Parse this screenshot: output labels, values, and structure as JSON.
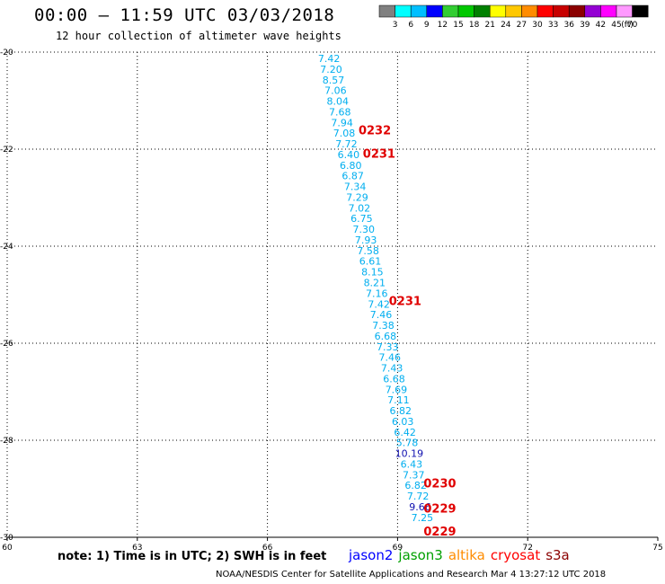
{
  "header": {
    "title": "00:00 – 11:59 UTC 03/03/2018",
    "subtitle": "12 hour collection of altimeter wave heights"
  },
  "color_scale": {
    "values": [
      "3",
      "6",
      "9",
      "12",
      "15",
      "18",
      "21",
      "24",
      "27",
      "30",
      "33",
      "36",
      "39",
      "42",
      "45",
      "70"
    ],
    "unit": "(ft)",
    "colors": [
      "#808080",
      "#00ffff",
      "#00bfff",
      "#0000ff",
      "#32cd32",
      "#00c800",
      "#008000",
      "#ffff00",
      "#ffc800",
      "#ff8c00",
      "#ff0000",
      "#c80000",
      "#8b0000",
      "#9400d3",
      "#ff00ff",
      "#ff99ff",
      "#000000"
    ]
  },
  "chart_data": {
    "type": "scatter",
    "xlim": [
      60,
      75
    ],
    "ylim": [
      -30,
      -20
    ],
    "x_ticks": [
      "60",
      "63",
      "66",
      "69",
      "72",
      "75"
    ],
    "y_ticks": [
      "-20",
      "-22",
      "-24",
      "-26",
      "-28",
      "-30"
    ],
    "grid": true,
    "points": [
      {
        "lon": 67.42,
        "lat": -20.13,
        "value": "7.42",
        "color": "#00aeef"
      },
      {
        "lon": 67.47,
        "lat": -20.35,
        "value": "7.20",
        "color": "#00aeef"
      },
      {
        "lon": 67.52,
        "lat": -20.57,
        "value": "8.57",
        "color": "#00aeef"
      },
      {
        "lon": 67.57,
        "lat": -20.79,
        "value": "7.06",
        "color": "#00aeef"
      },
      {
        "lon": 67.62,
        "lat": -21.01,
        "value": "8.04",
        "color": "#00aeef"
      },
      {
        "lon": 67.67,
        "lat": -21.23,
        "value": "7.68",
        "color": "#00aeef"
      },
      {
        "lon": 67.72,
        "lat": -21.45,
        "value": "7.94",
        "color": "#00aeef"
      },
      {
        "lon": 67.77,
        "lat": -21.67,
        "value": "7.08",
        "color": "#00aeef"
      },
      {
        "lon": 67.82,
        "lat": -21.89,
        "value": "7.72",
        "color": "#00aeef"
      },
      {
        "lon": 67.87,
        "lat": -22.11,
        "value": "6.40",
        "color": "#00aeef"
      },
      {
        "lon": 67.92,
        "lat": -22.33,
        "value": "6.80",
        "color": "#00aeef"
      },
      {
        "lon": 67.97,
        "lat": -22.55,
        "value": "6.87",
        "color": "#00aeef"
      },
      {
        "lon": 68.02,
        "lat": -22.77,
        "value": "7.34",
        "color": "#00aeef"
      },
      {
        "lon": 68.07,
        "lat": -22.99,
        "value": "7.29",
        "color": "#00aeef"
      },
      {
        "lon": 68.12,
        "lat": -23.21,
        "value": "7.02",
        "color": "#00aeef"
      },
      {
        "lon": 68.17,
        "lat": -23.43,
        "value": "6.75",
        "color": "#00aeef"
      },
      {
        "lon": 68.22,
        "lat": -23.65,
        "value": "7.30",
        "color": "#00aeef"
      },
      {
        "lon": 68.27,
        "lat": -23.87,
        "value": "7.93",
        "color": "#00aeef"
      },
      {
        "lon": 68.32,
        "lat": -24.09,
        "value": "7.58",
        "color": "#00aeef"
      },
      {
        "lon": 68.37,
        "lat": -24.31,
        "value": "6.61",
        "color": "#00aeef"
      },
      {
        "lon": 68.42,
        "lat": -24.53,
        "value": "8.15",
        "color": "#00aeef"
      },
      {
        "lon": 68.47,
        "lat": -24.75,
        "value": "8.21",
        "color": "#00aeef"
      },
      {
        "lon": 68.52,
        "lat": -24.97,
        "value": "7.16",
        "color": "#00aeef"
      },
      {
        "lon": 68.57,
        "lat": -25.19,
        "value": "7.42",
        "color": "#00aeef"
      },
      {
        "lon": 68.62,
        "lat": -25.41,
        "value": "7.46",
        "color": "#00aeef"
      },
      {
        "lon": 68.67,
        "lat": -25.63,
        "value": "7.38",
        "color": "#00aeef"
      },
      {
        "lon": 68.72,
        "lat": -25.85,
        "value": "6.68",
        "color": "#00aeef"
      },
      {
        "lon": 68.77,
        "lat": -26.07,
        "value": "7.33",
        "color": "#00aeef"
      },
      {
        "lon": 68.82,
        "lat": -26.29,
        "value": "7.46",
        "color": "#00aeef"
      },
      {
        "lon": 68.87,
        "lat": -26.51,
        "value": "7.43",
        "color": "#00aeef"
      },
      {
        "lon": 68.92,
        "lat": -26.73,
        "value": "6.68",
        "color": "#00aeef"
      },
      {
        "lon": 68.97,
        "lat": -26.95,
        "value": "7.69",
        "color": "#00aeef"
      },
      {
        "lon": 69.02,
        "lat": -27.17,
        "value": "7.11",
        "color": "#00aeef"
      },
      {
        "lon": 69.07,
        "lat": -27.39,
        "value": "6.82",
        "color": "#00aeef"
      },
      {
        "lon": 69.12,
        "lat": -27.61,
        "value": "6.03",
        "color": "#00aeef"
      },
      {
        "lon": 69.17,
        "lat": -27.83,
        "value": "6.42",
        "color": "#00aeef"
      },
      {
        "lon": 69.22,
        "lat": -28.05,
        "value": "5.78",
        "color": "#00aeef"
      },
      {
        "lon": 69.27,
        "lat": -28.27,
        "value": "10.19",
        "color": "#1010b0"
      },
      {
        "lon": 69.32,
        "lat": -28.49,
        "value": "6.43",
        "color": "#00aeef"
      },
      {
        "lon": 69.37,
        "lat": -28.71,
        "value": "7.37",
        "color": "#00aeef"
      },
      {
        "lon": 69.42,
        "lat": -28.93,
        "value": "6.82",
        "color": "#00aeef"
      },
      {
        "lon": 69.47,
        "lat": -29.15,
        "value": "7.72",
        "color": "#00aeef"
      },
      {
        "lon": 69.52,
        "lat": -29.37,
        "value": "9.66",
        "color": "#1010b0"
      },
      {
        "lon": 69.57,
        "lat": -29.59,
        "value": "7.25",
        "color": "#00aeef"
      }
    ],
    "annotations": [
      {
        "lon": 68.1,
        "lat": -21.6,
        "text": "0232"
      },
      {
        "lon": 68.2,
        "lat": -22.08,
        "text": "0231"
      },
      {
        "lon": 68.8,
        "lat": -25.12,
        "text": "0231"
      },
      {
        "lon": 69.6,
        "lat": -28.88,
        "text": "0230"
      },
      {
        "lon": 69.6,
        "lat": -29.4,
        "text": "0229"
      },
      {
        "lon": 69.6,
        "lat": -29.87,
        "text": "0229"
      }
    ]
  },
  "note": "note: 1) Time is in UTC; 2) SWH is in feet",
  "legend": [
    {
      "label": "jason2",
      "color": "#0000ff"
    },
    {
      "label": "jason3",
      "color": "#00a000"
    },
    {
      "label": "altika",
      "color": "#ff8c00"
    },
    {
      "label": "cryosat",
      "color": "#ff0000"
    },
    {
      "label": "s3a",
      "color": "#8b0000"
    }
  ],
  "footer": "NOAA/NESDIS Center for Satellite Applications and Research    Mar  4 13:27:12 UTC 2018"
}
